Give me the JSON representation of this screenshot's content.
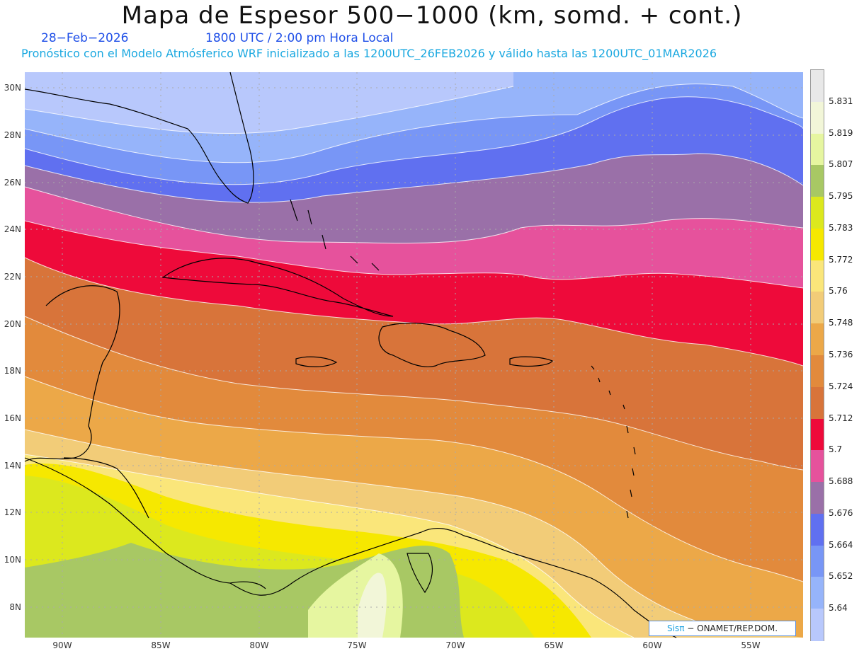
{
  "header": {
    "title": "Mapa de Espesor 500−1000 (km, somd. + cont.)",
    "date": "28−Feb−2026",
    "time": "1800 UTC / 2:00 pm Hora Local",
    "forecast": "Pronóstico con el Modelo Atmósferico WRF inicializado a las 1200UTC_26FEB2026 y válido hasta las  1200UTC_01MAR2026"
  },
  "lat_labels": [
    "30N",
    "28N",
    "26N",
    "24N",
    "22N",
    "20N",
    "18N",
    "16N",
    "14N",
    "12N",
    "10N",
    "8N"
  ],
  "lon_labels": [
    "90W",
    "85W",
    "80W",
    "75W",
    "70W",
    "65W",
    "60W",
    "55W"
  ],
  "colorbar": {
    "levels": [
      "5.831",
      "5.819",
      "5.807",
      "5.795",
      "5.783",
      "5.772",
      "5.76",
      "5.748",
      "5.736",
      "5.724",
      "5.712",
      "5.7",
      "5.688",
      "5.676",
      "5.664",
      "5.652",
      "5.64"
    ],
    "colors": [
      "#e8e8e8",
      "#f2f6d8",
      "#e6f6a0",
      "#a8c864",
      "#dce81e",
      "#f6e800",
      "#fae67a",
      "#f2cc78",
      "#eca848",
      "#e28a3c",
      "#d8743a",
      "#ee0a3a",
      "#e6529c",
      "#9a70a8",
      "#6070f0",
      "#7896f6",
      "#96b4fa",
      "#b8c8fc"
    ]
  },
  "credit": {
    "brand": "Sisπ",
    "org": "− ONAMET/REP.DOM."
  },
  "colors": {
    "ocean_grid": "#aaaaaa",
    "coast": "#000000"
  }
}
